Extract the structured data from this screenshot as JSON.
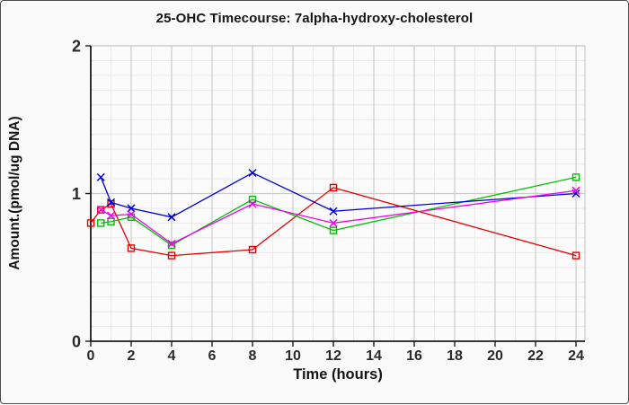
{
  "window": {
    "background": "#fafafa",
    "border_color": "#4c4c4c"
  },
  "chart_data": {
    "type": "line",
    "title": "25-OHC Timecourse: 7alpha-hydroxy-cholesterol",
    "xlabel": "Time (hours)",
    "ylabel": "Amount.(pmol/ug DNA)",
    "xlim": [
      0,
      24
    ],
    "ylim": [
      0,
      2
    ],
    "x_ticks": [
      0,
      2,
      4,
      6,
      8,
      10,
      12,
      14,
      16,
      18,
      20,
      22,
      24
    ],
    "y_ticks": [
      0,
      1,
      2
    ],
    "x_minor_step": 1,
    "y_minor_step": 0.1,
    "grid": {
      "minor_color": "#eaeaea",
      "major_color": "#cccccc",
      "plot_background": "#fbfbfb",
      "axis_color": "#1a1a1a"
    },
    "legend_position": "none",
    "series": [
      {
        "name": "red-squares",
        "color": "#e60000",
        "marker": "square",
        "points": [
          [
            0,
            0.8
          ],
          [
            0.5,
            0.89
          ],
          [
            1,
            0.93
          ],
          [
            2,
            0.63
          ],
          [
            4,
            0.58
          ],
          [
            8,
            0.62
          ],
          [
            12,
            1.04
          ],
          [
            24,
            0.58
          ]
        ]
      },
      {
        "name": "green-squares",
        "color": "#00c000",
        "marker": "square",
        "points": [
          [
            0.5,
            0.8
          ],
          [
            1,
            0.81
          ],
          [
            2,
            0.84
          ],
          [
            4,
            0.65
          ],
          [
            8,
            0.96
          ],
          [
            12,
            0.75
          ],
          [
            24,
            1.11
          ]
        ]
      },
      {
        "name": "blue-x",
        "color": "#0000d0",
        "marker": "x",
        "points": [
          [
            0.5,
            1.11
          ],
          [
            1,
            0.94
          ],
          [
            2,
            0.9
          ],
          [
            4,
            0.84
          ],
          [
            8,
            1.14
          ],
          [
            12,
            0.88
          ],
          [
            24,
            1.0
          ]
        ]
      },
      {
        "name": "magenta-x",
        "color": "#f000f0",
        "marker": "x",
        "points": [
          [
            0.5,
            0.89
          ],
          [
            1,
            0.85
          ],
          [
            2,
            0.86
          ],
          [
            4,
            0.66
          ],
          [
            8,
            0.93
          ],
          [
            12,
            0.8
          ],
          [
            24,
            1.02
          ]
        ]
      }
    ]
  }
}
